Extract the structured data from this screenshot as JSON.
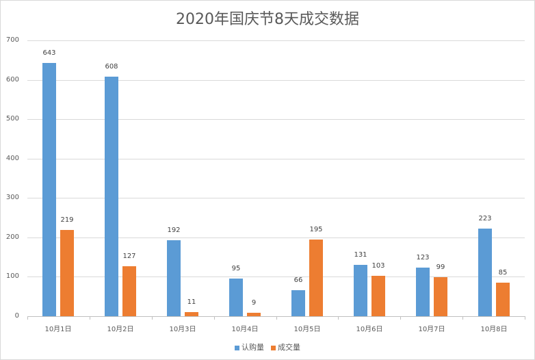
{
  "chart_data": {
    "type": "bar",
    "title": "2020年国庆节8天成交数据",
    "categories": [
      "10月1日",
      "10月2日",
      "10月3日",
      "10月4日",
      "10月5日",
      "10月6日",
      "10月7日",
      "10月8日"
    ],
    "series": [
      {
        "name": "认购量",
        "color": "#5b9bd5",
        "values": [
          643,
          608,
          192,
          95,
          66,
          131,
          123,
          223
        ]
      },
      {
        "name": "成交量",
        "color": "#ed7d31",
        "values": [
          219,
          127,
          11,
          9,
          195,
          103,
          99,
          85
        ]
      }
    ],
    "xlabel": "",
    "ylabel": "",
    "ylim": [
      0,
      700
    ],
    "yticks": [
      "0",
      "100",
      "200",
      "300",
      "400",
      "500",
      "600",
      "700"
    ],
    "grid": true,
    "legend_position": "bottom"
  }
}
